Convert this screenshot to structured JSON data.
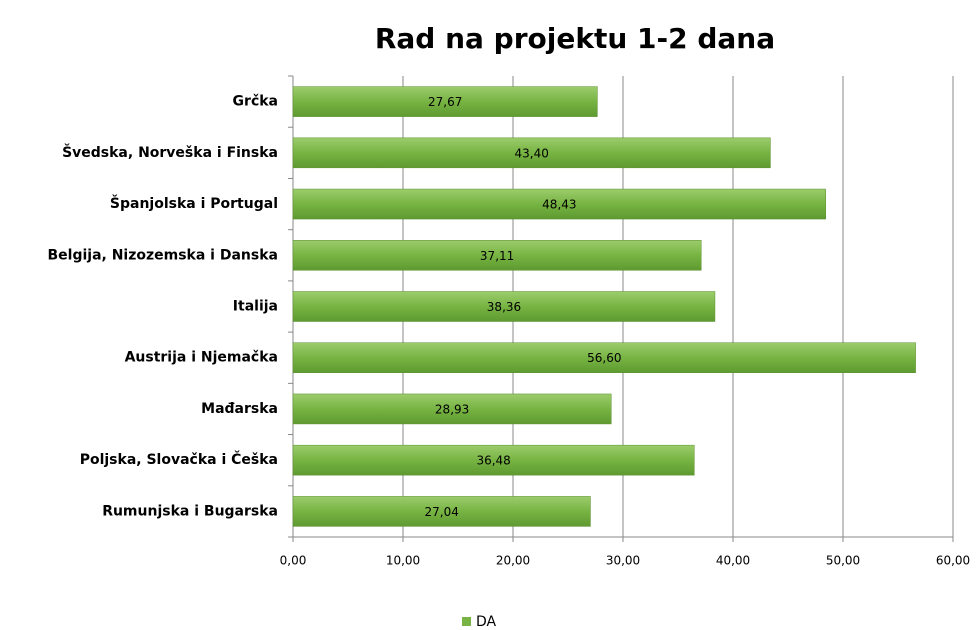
{
  "chart_data": {
    "type": "bar",
    "orientation": "horizontal",
    "title": "Rad na projektu 1-2 dana",
    "categories": [
      "Grčka",
      "Švedska, Norveška i Finska",
      "Španjolska i Portugal",
      "Belgija, Nizozemska i Danska",
      "Italija",
      "Austrija i Njemačka",
      "Mađarska",
      "Poljska, Slovačka i Češka",
      "Rumunjska i Bugarska"
    ],
    "series": [
      {
        "name": "DA",
        "color": "#77b443",
        "values": [
          27.67,
          43.4,
          48.43,
          37.11,
          38.36,
          56.6,
          28.93,
          36.48,
          27.04
        ],
        "value_labels": [
          "27,67",
          "43,40",
          "48,43",
          "37,11",
          "38,36",
          "56,60",
          "28,93",
          "36,48",
          "27,04"
        ]
      }
    ],
    "xlim": [
      0,
      60
    ],
    "xticks": [
      {
        "value": 0,
        "label": "0,00"
      },
      {
        "value": 10,
        "label": "10,00"
      },
      {
        "value": 20,
        "label": "20,00"
      },
      {
        "value": 30,
        "label": "30,00"
      },
      {
        "value": 40,
        "label": "40,00"
      },
      {
        "value": 50,
        "label": "50,00"
      },
      {
        "value": 60,
        "label": "60,00"
      }
    ],
    "grid": true,
    "legend": "bottom"
  }
}
